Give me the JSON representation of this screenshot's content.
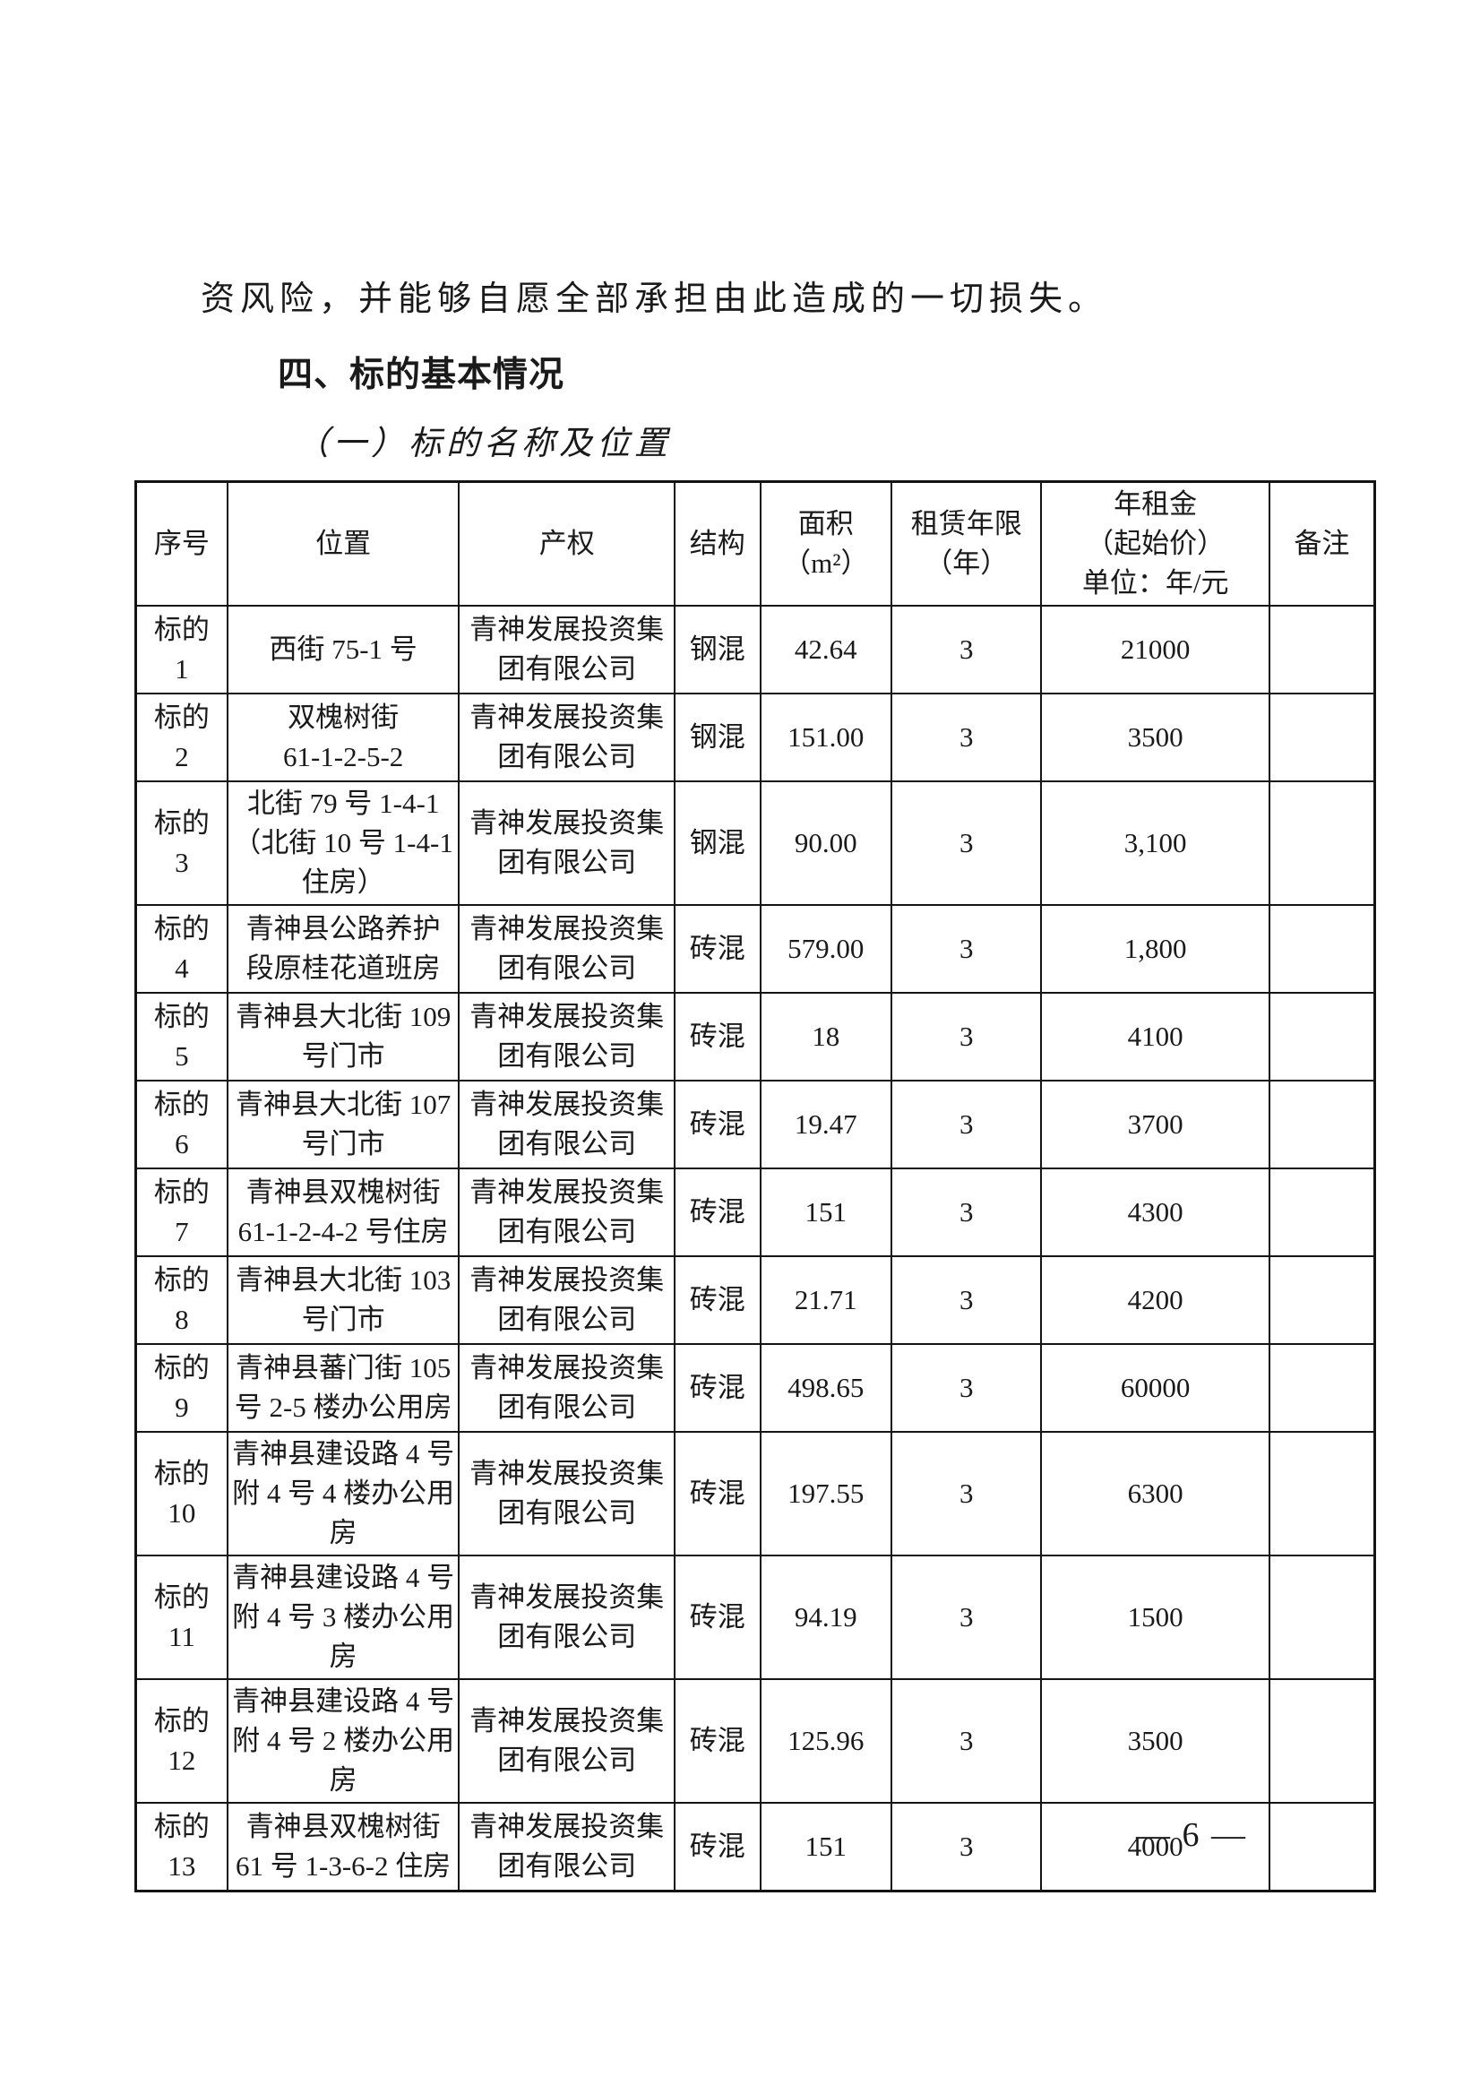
{
  "colors": {
    "background": "#ffffff",
    "text": "#1a1a1a",
    "table_border": "#141414"
  },
  "document": {
    "intro_text": "资风险，并能够自愿全部承担由此造成的一切损失。",
    "section_heading": "四、标的基本情况",
    "sub_heading": "（一）标的名称及位置",
    "page_number": "— 6 —"
  },
  "table": {
    "headers": [
      "序号",
      "位置",
      "产权",
      "结构",
      "面积\n（m²）",
      "租赁年限\n（年）",
      "年租金\n（起始价）\n单位：年/元",
      "备注"
    ],
    "column_keys": [
      "no",
      "location",
      "ownership",
      "structure",
      "area",
      "term",
      "rent",
      "remark"
    ],
    "column_widths_pct": [
      7.4,
      18.7,
      17.4,
      6.9,
      10.6,
      12.1,
      18.4,
      8.5
    ],
    "rows": [
      {
        "no": "标的\n1",
        "location": "西街 75-1 号",
        "ownership": "青神发展投资集\n团有限公司",
        "structure": "钢混",
        "area": "42.64",
        "term": "3",
        "rent": "21000",
        "remark": ""
      },
      {
        "no": "标的\n2",
        "location": "双槐树街\n61-1-2-5-2",
        "ownership": "青神发展投资集\n团有限公司",
        "structure": "钢混",
        "area": "151.00",
        "term": "3",
        "rent": "3500",
        "remark": ""
      },
      {
        "no": "标的\n3",
        "location": "北街 79 号 1-4-1\n（北街 10 号 1-4-1\n住房）",
        "ownership": "青神发展投资集\n团有限公司",
        "structure": "钢混",
        "area": "90.00",
        "term": "3",
        "rent": "3,100",
        "remark": ""
      },
      {
        "no": "标的\n4",
        "location": "青神县公路养护\n段原桂花道班房",
        "ownership": "青神发展投资集\n团有限公司",
        "structure": "砖混",
        "area": "579.00",
        "term": "3",
        "rent": "1,800",
        "remark": ""
      },
      {
        "no": "标的\n5",
        "location": "青神县大北街 109\n号门市",
        "ownership": "青神发展投资集\n团有限公司",
        "structure": "砖混",
        "area": "18",
        "term": "3",
        "rent": "4100",
        "remark": ""
      },
      {
        "no": "标的\n6",
        "location": "青神县大北街 107\n号门市",
        "ownership": "青神发展投资集\n团有限公司",
        "structure": "砖混",
        "area": "19.47",
        "term": "3",
        "rent": "3700",
        "remark": ""
      },
      {
        "no": "标的\n7",
        "location": "青神县双槐树街\n61-1-2-4-2 号住房",
        "ownership": "青神发展投资集\n团有限公司",
        "structure": "砖混",
        "area": "151",
        "term": "3",
        "rent": "4300",
        "remark": ""
      },
      {
        "no": "标的\n8",
        "location": "青神县大北街 103\n号门市",
        "ownership": "青神发展投资集\n团有限公司",
        "structure": "砖混",
        "area": "21.71",
        "term": "3",
        "rent": "4200",
        "remark": ""
      },
      {
        "no": "标的\n9",
        "location": "青神县蕃门街 105\n号 2-5 楼办公用房",
        "ownership": "青神发展投资集\n团有限公司",
        "structure": "砖混",
        "area": "498.65",
        "term": "3",
        "rent": "60000",
        "remark": ""
      },
      {
        "no": "标的\n10",
        "location": "青神县建设路 4 号\n附 4 号 4 楼办公用\n房",
        "ownership": "青神发展投资集\n团有限公司",
        "structure": "砖混",
        "area": "197.55",
        "term": "3",
        "rent": "6300",
        "remark": ""
      },
      {
        "no": "标的\n11",
        "location": "青神县建设路 4 号\n附 4 号 3 楼办公用\n房",
        "ownership": "青神发展投资集\n团有限公司",
        "structure": "砖混",
        "area": "94.19",
        "term": "3",
        "rent": "1500",
        "remark": ""
      },
      {
        "no": "标的\n12",
        "location": "青神县建设路 4 号\n附 4 号 2 楼办公用\n房",
        "ownership": "青神发展投资集\n团有限公司",
        "structure": "砖混",
        "area": "125.96",
        "term": "3",
        "rent": "3500",
        "remark": ""
      },
      {
        "no": "标的\n13",
        "location": "青神县双槐树街\n61 号 1-3-6-2 住房",
        "ownership": "青神发展投资集\n团有限公司",
        "structure": "砖混",
        "area": "151",
        "term": "3",
        "rent": "4000",
        "remark": ""
      }
    ]
  }
}
